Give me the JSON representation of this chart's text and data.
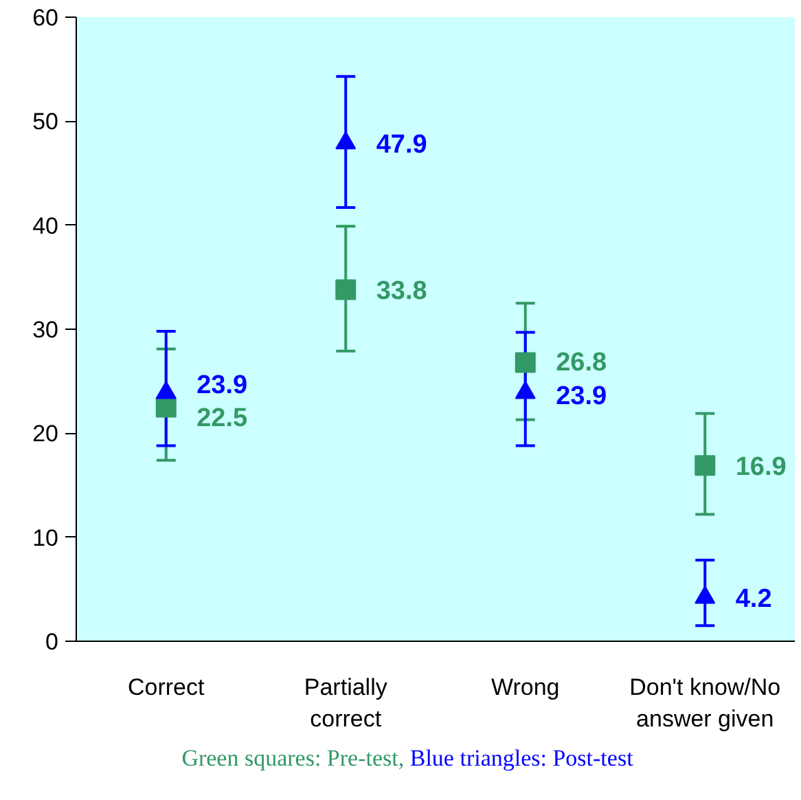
{
  "chart_data": {
    "type": "scatter",
    "categories": [
      "Correct",
      "Partially\ncorrect",
      "Wrong",
      "Don't know/No\nanswer given"
    ],
    "series": [
      {
        "name": "Green squares: Pre-test,",
        "color": "#339966",
        "marker": "square",
        "values": [
          22.5,
          33.8,
          26.8,
          16.9
        ],
        "errors": [
          [
            17.4,
            28.1
          ],
          [
            27.9,
            39.9
          ],
          [
            21.3,
            32.5
          ],
          [
            12.2,
            21.9
          ]
        ]
      },
      {
        "name": "Blue triangles: Post-test",
        "color": "#0000ff",
        "marker": "triangle",
        "values": [
          23.9,
          47.9,
          23.9,
          4.2
        ],
        "errors": [
          [
            18.8,
            29.8
          ],
          [
            41.7,
            54.3
          ],
          [
            18.8,
            29.7
          ],
          [
            1.5,
            7.8
          ]
        ]
      }
    ],
    "ylim": [
      0,
      60
    ],
    "yticks": [
      0,
      10,
      20,
      30,
      40,
      50,
      60
    ],
    "data_labels": true,
    "grid": false,
    "legend": "bottom"
  }
}
